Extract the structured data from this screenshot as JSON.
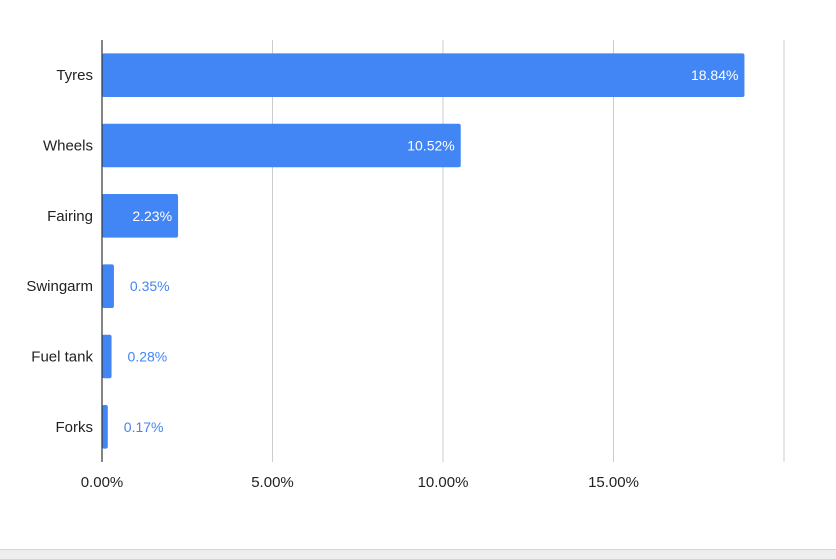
{
  "chart_data": {
    "type": "bar",
    "orientation": "horizontal",
    "categories": [
      "Tyres",
      "Wheels",
      "Fairing",
      "Swingarm",
      "Fuel tank",
      "Forks"
    ],
    "values": [
      18.84,
      10.52,
      2.23,
      0.35,
      0.28,
      0.17
    ],
    "value_labels": [
      "18.84%",
      "10.52%",
      "2.23%",
      "0.35%",
      "0.28%",
      "0.17%"
    ],
    "x_ticks": [
      0,
      5,
      10,
      15,
      20
    ],
    "x_tick_labels": [
      "0.00%",
      "5.00%",
      "10.00%",
      "15.00%",
      ""
    ],
    "xlim": [
      0,
      20
    ],
    "grid": true,
    "legend": "none",
    "colors": {
      "bar": "#4285f4",
      "label_inside": "#ffffff",
      "label_outside": "#4285f4",
      "grid": "#cccccc",
      "axis": "#333333",
      "text": "#222222"
    }
  }
}
